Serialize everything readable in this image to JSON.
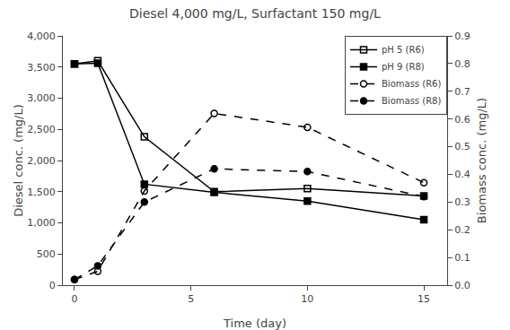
{
  "chart_data": {
    "type": "line",
    "title": "Diesel 4,000 mg/L, Surfactant 150 mg/L",
    "xlabel": "Time (day)",
    "ylabel": "Diesel conc. (mg/L)",
    "y2label": "Biomass conc. (mg/L)",
    "x": [
      0,
      1,
      3,
      6,
      10,
      15
    ],
    "series": [
      {
        "name": "pH 5 (R6)",
        "color": "#000000",
        "marker": "square-open",
        "line_style": "solid",
        "values": [
          3550,
          3600,
          2380,
          1500,
          1550,
          1430
        ]
      },
      {
        "name": "pH 9 (R8)",
        "color": "#000000",
        "marker": "square",
        "line_style": "solid",
        "values": [
          3550,
          3560,
          1620,
          1490,
          1350,
          1050
        ]
      },
      {
        "name": "Biomass (R6)",
        "color": "#000000",
        "marker": "circle-open",
        "line_style": "dash",
        "axis": "y2",
        "values": [
          0.02,
          0.05,
          0.34,
          0.62,
          0.57,
          0.37
        ]
      },
      {
        "name": "Biomass (R8)",
        "color": "#000000",
        "marker": "circle",
        "line_style": "dash",
        "axis": "y2",
        "values": [
          0.02,
          0.07,
          0.3,
          0.42,
          0.41,
          0.32
        ]
      }
    ],
    "xlim": [
      -0.5,
      16
    ],
    "xticks": [
      0,
      5,
      10,
      15
    ],
    "ylim": [
      0,
      4000
    ],
    "yticks": [
      0,
      500,
      {
        "value": 1000,
        "label": "1,000"
      },
      {
        "value": 1500,
        "label": "1,500"
      },
      {
        "value": 2000,
        "label": "2,000"
      },
      {
        "value": 2500,
        "label": "2,500"
      },
      {
        "value": 3000,
        "label": "3,000"
      },
      {
        "value": 3500,
        "label": "3,500"
      },
      {
        "value": 4000,
        "label": "4,000"
      }
    ],
    "y2lim": [
      0,
      0.9
    ],
    "y2ticks": [
      {
        "value": 0,
        "label": "0.0"
      },
      0.1,
      0.2,
      0.3,
      0.4,
      0.5,
      0.6,
      0.7,
      0.8,
      0.9
    ],
    "legend": "upper right",
    "grid": false
  }
}
